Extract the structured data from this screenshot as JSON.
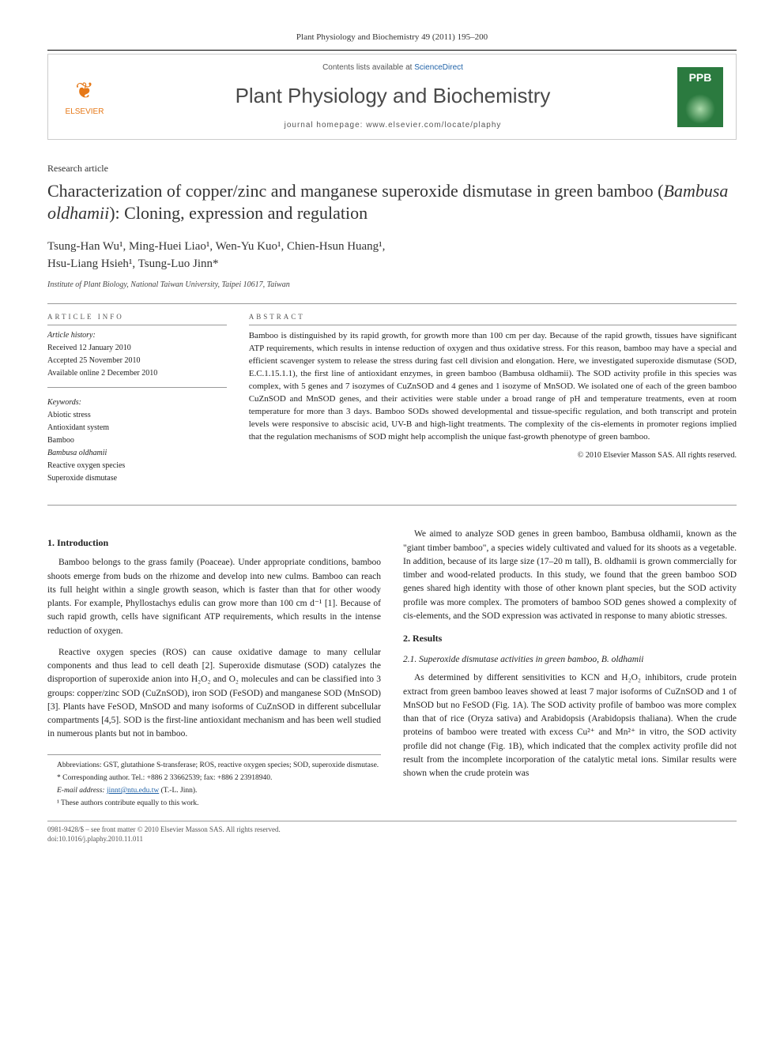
{
  "header": {
    "journal_ref": "Plant Physiology and Biochemistry 49 (2011) 195–200",
    "contents_prefix": "Contents lists available at ",
    "contents_link": "ScienceDirect",
    "journal_name": "Plant Physiology and Biochemistry",
    "homepage_label": "journal homepage: www.elsevier.com/locate/plaphy",
    "publisher_brand": "ELSEVIER",
    "cover_label": "PPB"
  },
  "article": {
    "type": "Research article",
    "title_pre": "Characterization of copper/zinc and manganese superoxide dismutase in green bamboo (",
    "title_em": "Bambusa oldhamii",
    "title_post": "): Cloning, expression and regulation",
    "authors_line1": "Tsung-Han Wu¹, Ming-Huei Liao¹, Wen-Yu Kuo¹, Chien-Hsun Huang¹,",
    "authors_line2": "Hsu-Liang Hsieh¹, Tsung-Luo Jinn*",
    "affiliation": "Institute of Plant Biology, National Taiwan University, Taipei 10617, Taiwan"
  },
  "info": {
    "heading": "ARTICLE INFO",
    "history_head": "Article history:",
    "received": "Received 12 January 2010",
    "accepted": "Accepted 25 November 2010",
    "online": "Available online 2 December 2010",
    "keywords_head": "Keywords:",
    "keywords": [
      "Abiotic stress",
      "Antioxidant system",
      "Bamboo",
      "Bambusa oldhamii",
      "Reactive oxygen species",
      "Superoxide dismutase"
    ]
  },
  "abstract": {
    "heading": "ABSTRACT",
    "text": "Bamboo is distinguished by its rapid growth, for growth more than 100 cm per day. Because of the rapid growth, tissues have significant ATP requirements, which results in intense reduction of oxygen and thus oxidative stress. For this reason, bamboo may have a special and efficient scavenger system to release the stress during fast cell division and elongation. Here, we investigated superoxide dismutase (SOD, E.C.1.15.1.1), the first line of antioxidant enzymes, in green bamboo (Bambusa oldhamii). The SOD activity profile in this species was complex, with 5 genes and 7 isozymes of CuZnSOD and 4 genes and 1 isozyme of MnSOD. We isolated one of each of the green bamboo CuZnSOD and MnSOD genes, and their activities were stable under a broad range of pH and temperature treatments, even at room temperature for more than 3 days. Bamboo SODs showed developmental and tissue-specific regulation, and both transcript and protein levels were responsive to abscisic acid, UV-B and high-light treatments. The complexity of the cis-elements in promoter regions implied that the regulation mechanisms of SOD might help accomplish the unique fast-growth phenotype of green bamboo.",
    "copyright": "© 2010 Elsevier Masson SAS. All rights reserved."
  },
  "body": {
    "intro_head": "1. Introduction",
    "intro_p1": "Bamboo belongs to the grass family (Poaceae). Under appropriate conditions, bamboo shoots emerge from buds on the rhizome and develop into new culms. Bamboo can reach its full height within a single growth season, which is faster than that for other woody plants. For example, Phyllostachys edulis can grow more than 100 cm d⁻¹ [1]. Because of such rapid growth, cells have significant ATP requirements, which results in the intense reduction of oxygen.",
    "intro_p2": "Reactive oxygen species (ROS) can cause oxidative damage to many cellular components and thus lead to cell death [2]. Superoxide dismutase (SOD) catalyzes the disproportion of superoxide anion into H₂O₂ and O₂ molecules and can be classified into 3 groups: copper/zinc SOD (CuZnSOD), iron SOD (FeSOD) and manganese SOD (MnSOD) [3]. Plants have FeSOD, MnSOD and many isoforms of CuZnSOD in different subcellular compartments [4,5]. SOD is the first-line antioxidant mechanism and has been well studied in numerous plants but not in bamboo.",
    "intro_p3": "We aimed to analyze SOD genes in green bamboo, Bambusa oldhamii, known as the \"giant timber bamboo\", a species widely cultivated and valued for its shoots as a vegetable. In addition, because of its large size (17–20 m tall), B. oldhamii is grown commercially for timber and wood-related products. In this study, we found that the green bamboo SOD genes shared high identity with those of other known plant species, but the SOD activity profile was more complex. The promoters of bamboo SOD genes showed a complexity of cis-elements, and the SOD expression was activated in response to many abiotic stresses.",
    "results_head": "2. Results",
    "results_sub": "2.1. Superoxide dismutase activities in green bamboo, B. oldhamii",
    "results_p1": "As determined by different sensitivities to KCN and H₂O₂ inhibitors, crude protein extract from green bamboo leaves showed at least 7 major isoforms of CuZnSOD and 1 of MnSOD but no FeSOD (Fig. 1A). The SOD activity profile of bamboo was more complex than that of rice (Oryza sativa) and Arabidopsis (Arabidopsis thaliana). When the crude proteins of bamboo were treated with excess Cu²⁺ and Mn²⁺ in vitro, the SOD activity profile did not change (Fig. 1B), which indicated that the complex activity profile did not result from the incomplete incorporation of the catalytic metal ions. Similar results were shown when the crude protein was"
  },
  "footnotes": {
    "abbrev": "Abbreviations: GST, glutathione S-transferase; ROS, reactive oxygen species; SOD, superoxide dismutase.",
    "corr": "* Corresponding author. Tel.: +886 2 33662539; fax: +886 2 23918940.",
    "email_label": "E-mail address: ",
    "email": "jinnt@ntu.edu.tw",
    "email_suffix": " (T.-L. Jinn).",
    "equal": "¹ These authors contribute equally to this work."
  },
  "footer": {
    "left": "0981-9428/$ – see front matter © 2010 Elsevier Masson SAS. All rights reserved.",
    "doi": "doi:10.1016/j.plaphy.2010.11.011"
  },
  "colors": {
    "link": "#2163a8",
    "elsevier_orange": "#e67817",
    "cover_green": "#2b7a3f",
    "text": "#222222",
    "rule": "#999999"
  }
}
